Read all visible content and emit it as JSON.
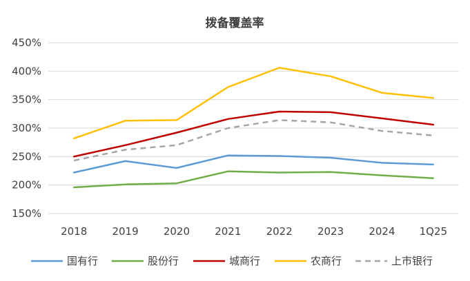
{
  "chart_data": {
    "type": "line",
    "title": "拨备覆盖率",
    "xlabel": "",
    "ylabel": "",
    "categories": [
      "2018",
      "2019",
      "2020",
      "2021",
      "2022",
      "2023",
      "2024",
      "1Q25"
    ],
    "ylim": [
      150,
      450
    ],
    "yticks": [
      150,
      200,
      250,
      300,
      350,
      400,
      450
    ],
    "ytick_labels": [
      "150%",
      "200%",
      "250%",
      "300%",
      "350%",
      "400%",
      "450%"
    ],
    "grid": true,
    "legend_position": "bottom",
    "series": [
      {
        "name": "国有行",
        "color": "#5b9bd5",
        "dashed": false,
        "values": [
          222,
          242,
          230,
          252,
          251,
          248,
          239,
          236
        ]
      },
      {
        "name": "股份行",
        "color": "#70ad47",
        "dashed": false,
        "values": [
          196,
          201,
          203,
          224,
          222,
          223,
          217,
          212
        ]
      },
      {
        "name": "城商行",
        "color": "#c00000",
        "dashed": false,
        "values": [
          250,
          270,
          292,
          316,
          329,
          328,
          317,
          306
        ]
      },
      {
        "name": "农商行",
        "color": "#ffc000",
        "dashed": false,
        "values": [
          282,
          313,
          314,
          372,
          406,
          391,
          362,
          353
        ]
      },
      {
        "name": "上市银行",
        "color": "#a6a6a6",
        "dashed": true,
        "values": [
          243,
          262,
          270,
          300,
          314,
          310,
          295,
          287
        ]
      }
    ]
  }
}
